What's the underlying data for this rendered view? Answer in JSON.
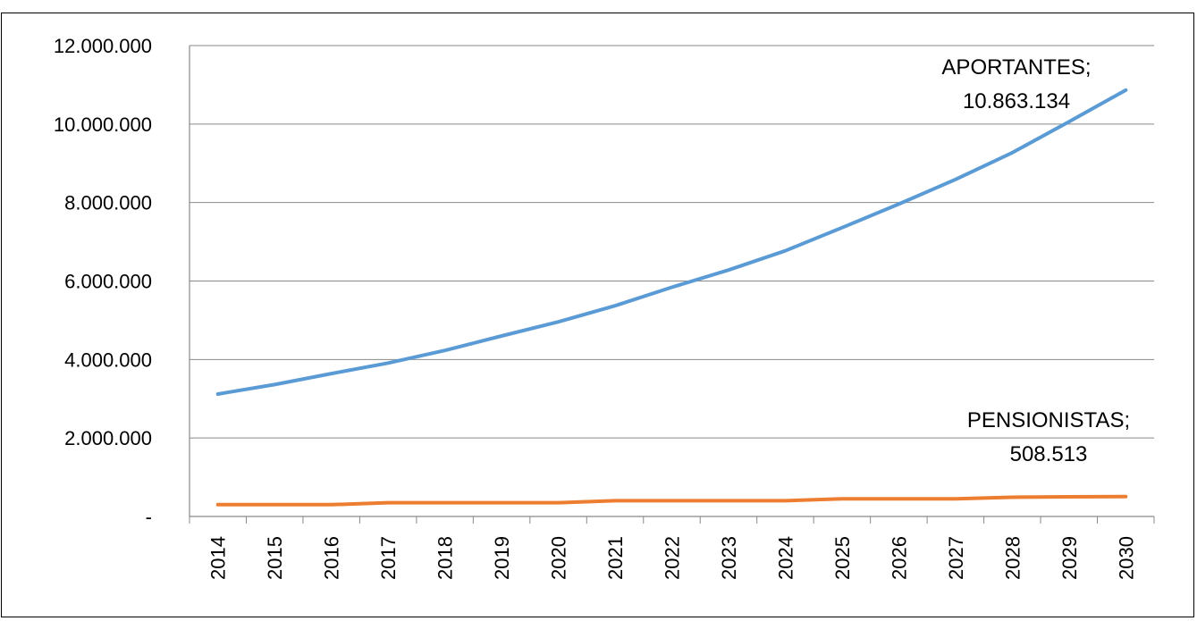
{
  "chart_data": {
    "type": "line",
    "title": "",
    "xlabel": "",
    "ylabel": "",
    "ylim": [
      0,
      12000000
    ],
    "y_ticks": [
      {
        "value": 0,
        "label": "-"
      },
      {
        "value": 2000000,
        "label": "2.000.000"
      },
      {
        "value": 4000000,
        "label": "4.000.000"
      },
      {
        "value": 6000000,
        "label": "6.000.000"
      },
      {
        "value": 8000000,
        "label": "8.000.000"
      },
      {
        "value": 10000000,
        "label": "10.000.000"
      },
      {
        "value": 12000000,
        "label": "12.000.000"
      }
    ],
    "grid": true,
    "legend": "none",
    "categories": [
      "2014",
      "2015",
      "2016",
      "2017",
      "2018",
      "2019",
      "2020",
      "2021",
      "2022",
      "2023",
      "2024",
      "2025",
      "2026",
      "2027",
      "2028",
      "2029",
      "2030"
    ],
    "series": [
      {
        "key": "aportantes",
        "color": "#5b9bd5",
        "values": [
          3120000,
          3360000,
          3640000,
          3910000,
          4230000,
          4600000,
          4960000,
          5370000,
          5840000,
          6280000,
          6770000,
          7360000,
          7960000,
          8590000,
          9270000,
          10060000,
          10863134
        ]
      },
      {
        "key": "pensionistas",
        "color": "#ed7d31",
        "values": [
          300000,
          300000,
          300000,
          350000,
          350000,
          350000,
          350000,
          400000,
          400000,
          400000,
          400000,
          450000,
          450000,
          450000,
          490000,
          500000,
          508513
        ]
      }
    ],
    "annotations": [
      {
        "series": "aportantes",
        "line1": "APORTANTES;",
        "line2": "10.863.134"
      },
      {
        "series": "pensionistas",
        "line1": "PENSIONISTAS;",
        "line2": "508.513"
      }
    ]
  }
}
